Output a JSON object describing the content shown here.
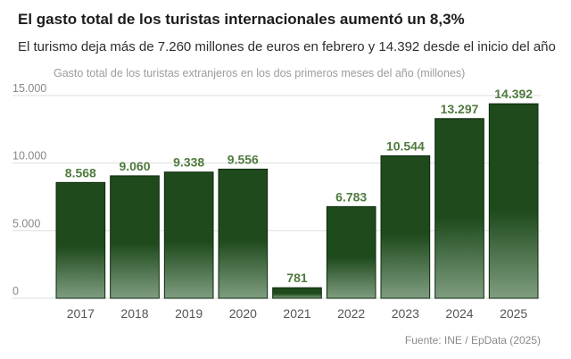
{
  "header": {
    "title": "El gasto total de los turistas internacionales aumentó un 8,3%",
    "subtitle": "El turismo deja más de 7.260 millones de euros en febrero y 14.392 desde el inicio del año"
  },
  "footer": {
    "source": "Fuente: INE / EpData (2025)"
  },
  "colors": {
    "bar_top": "#1e4a1c",
    "bar_bottom": "#7f9d80",
    "grid": "#dddddd",
    "data_label": "#4f7a3e"
  },
  "chart_data": {
    "type": "bar",
    "title": "Gasto total de los turistas extranjeros en los dos primeros meses del año (millones)",
    "xlabel": "",
    "ylabel": "",
    "ylim": [
      0,
      15000
    ],
    "grid": true,
    "categories": [
      "2017",
      "2018",
      "2019",
      "2020",
      "2021",
      "2022",
      "2023",
      "2024",
      "2025"
    ],
    "values": [
      8568,
      9060,
      9338,
      9556,
      781,
      6783,
      10544,
      13297,
      14392
    ],
    "value_labels": [
      "8.568",
      "9.060",
      "9.338",
      "9.556",
      "781",
      "6.783",
      "10.544",
      "13.297",
      "14.392"
    ],
    "ticks": [
      0,
      5000,
      10000,
      15000
    ],
    "tick_labels": [
      "0",
      "5.000",
      "10.000",
      "15.000"
    ]
  }
}
